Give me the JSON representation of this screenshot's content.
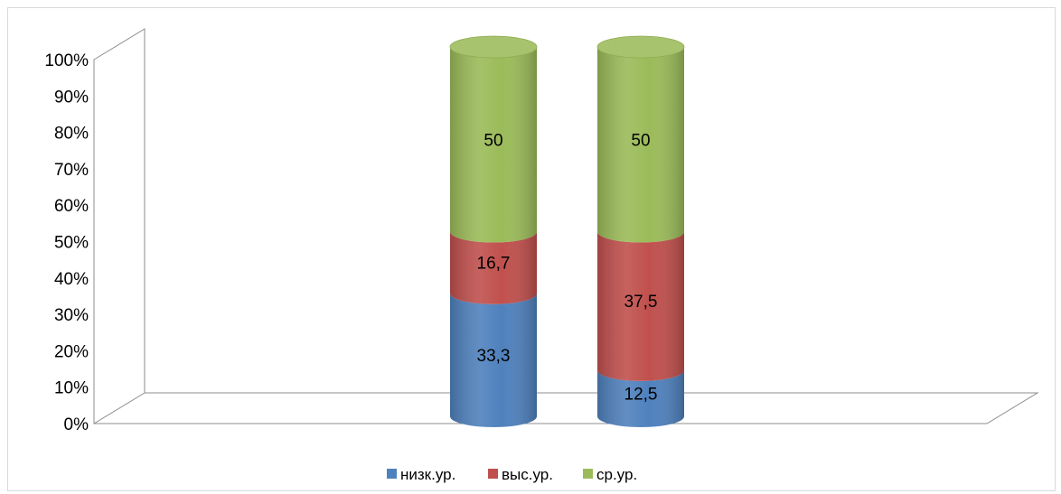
{
  "chart_data": {
    "type": "bar",
    "stacked": "percent",
    "style": "3d-cylinder",
    "title": "",
    "xlabel": "",
    "ylabel": "",
    "ylim": [
      0,
      100
    ],
    "y_ticks": [
      "0%",
      "10%",
      "20%",
      "30%",
      "40%",
      "50%",
      "60%",
      "70%",
      "80%",
      "90%",
      "100%"
    ],
    "categories": [
      "",
      ""
    ],
    "series": [
      {
        "name": "низк.ур.",
        "color": "#4f81bd",
        "values": [
          33.3,
          12.5
        ],
        "labels": [
          "33,3",
          "12,5"
        ]
      },
      {
        "name": "выс.ур.",
        "color": "#c0504d",
        "values": [
          16.7,
          37.5
        ],
        "labels": [
          "16,7",
          "37,5"
        ]
      },
      {
        "name": "ср.ур.",
        "color": "#9bbb59",
        "values": [
          50,
          50
        ],
        "labels": [
          "50",
          "50"
        ]
      }
    ],
    "grid": false,
    "legend": "bottom"
  }
}
